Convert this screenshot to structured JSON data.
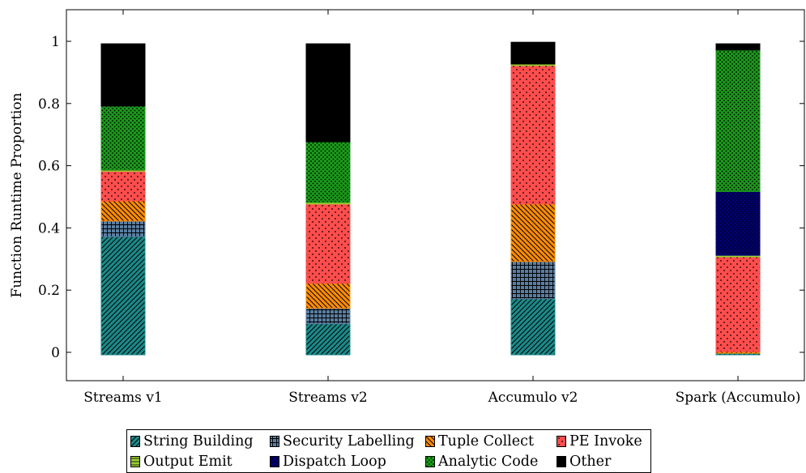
{
  "chart_data": {
    "type": "bar",
    "stacked": true,
    "categories": [
      "Streams v1",
      "Streams v2",
      "Accumulo v2",
      "Spark (Accumulo)"
    ],
    "ylabel": "Function Runtime Proportion",
    "xlabel": "",
    "ylim": [
      -0.09,
      1.1
    ],
    "yticks": [
      0,
      0.2,
      0.4,
      0.6,
      0.8,
      1
    ],
    "ytick_labels": [
      "0",
      "0.2",
      "0.4",
      "0.6",
      "0.8",
      "1"
    ],
    "grid": false,
    "legend_position": "bottom",
    "series": [
      {
        "name": "String Building",
        "color": "#1a8a8a",
        "pattern": "diag-right",
        "values": [
          0.38,
          0.1,
          0.18,
          0.005
        ]
      },
      {
        "name": "Security Labelling",
        "color": "#5a7ea0",
        "pattern": "grid",
        "values": [
          0.05,
          0.05,
          0.12,
          0.0
        ]
      },
      {
        "name": "Tuple Collect",
        "color": "#ff8c00",
        "pattern": "diag-left",
        "values": [
          0.065,
          0.08,
          0.185,
          0.005
        ]
      },
      {
        "name": "PE Invoke",
        "color": "#ff4d4d",
        "pattern": "dots",
        "values": [
          0.095,
          0.255,
          0.445,
          0.305
        ]
      },
      {
        "name": "Output Emit",
        "color": "#9acd32",
        "pattern": "hlines",
        "values": [
          0.005,
          0.005,
          0.005,
          0.005
        ]
      },
      {
        "name": "Dispatch Loop",
        "color": "#000080",
        "pattern": "crosshatch",
        "values": [
          0.0,
          0.0,
          0.0,
          0.205
        ]
      },
      {
        "name": "Analytic Code",
        "color": "#1a9a1a",
        "pattern": "dense-dots",
        "values": [
          0.205,
          0.195,
          0.0,
          0.455
        ]
      },
      {
        "name": "Other",
        "color": "#000000",
        "pattern": "solid",
        "values": [
          0.2,
          0.315,
          0.07,
          0.02
        ]
      }
    ]
  }
}
